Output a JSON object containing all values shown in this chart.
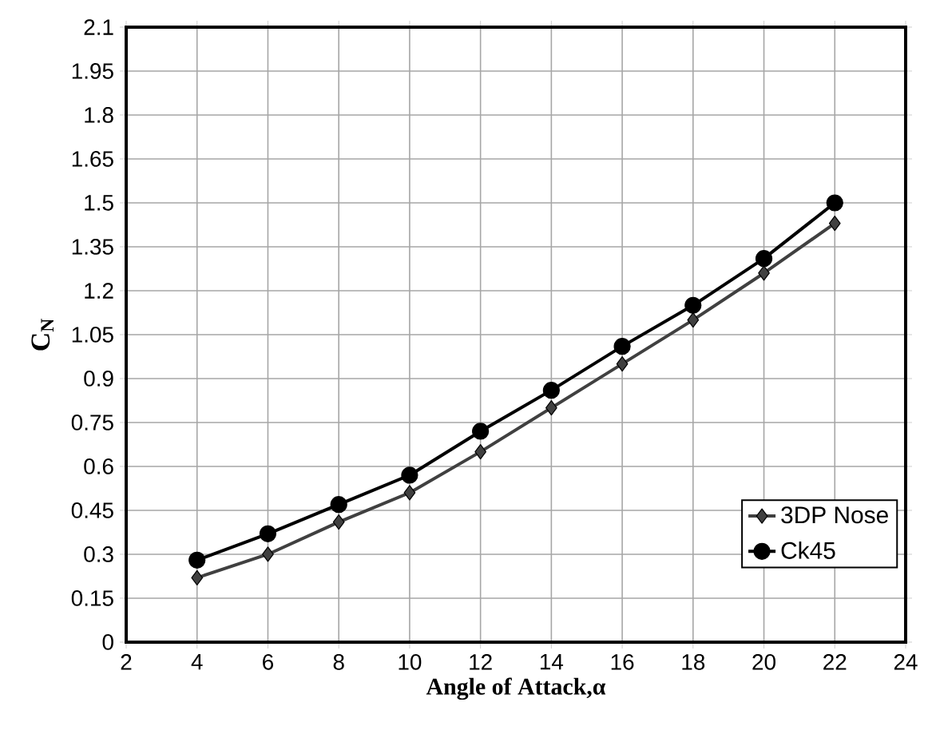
{
  "chart_data": {
    "type": "line",
    "xlabel": "**Angle of Attack,α**",
    "ylabel": "**C$_{N}$**",
    "x": [
      4,
      6,
      8,
      10,
      12,
      14,
      16,
      18,
      20,
      22
    ],
    "series": [
      {
        "name": "3DP Nose",
        "color": "#404040",
        "marker": "diamond",
        "values": [
          0.22,
          0.3,
          0.41,
          0.51,
          0.65,
          0.8,
          0.95,
          1.1,
          1.26,
          1.43
        ]
      },
      {
        "name": "Ck45",
        "color": "#000000",
        "marker": "circle",
        "values": [
          0.28,
          0.37,
          0.47,
          0.57,
          0.72,
          0.86,
          1.01,
          1.15,
          1.31,
          1.5
        ]
      }
    ],
    "xlim": [
      2,
      24
    ],
    "xticks": [
      2,
      4,
      6,
      8,
      10,
      12,
      14,
      16,
      18,
      20,
      22,
      24
    ],
    "ylim": [
      0,
      2.1
    ],
    "yticks": [
      0,
      0.15,
      0.3,
      0.45,
      0.6,
      0.75,
      0.9,
      1.05,
      1.2,
      1.35,
      1.5,
      1.65,
      1.8,
      1.95,
      2.1
    ],
    "grid": true,
    "legend": "bottom right",
    "line_style": "solid"
  }
}
